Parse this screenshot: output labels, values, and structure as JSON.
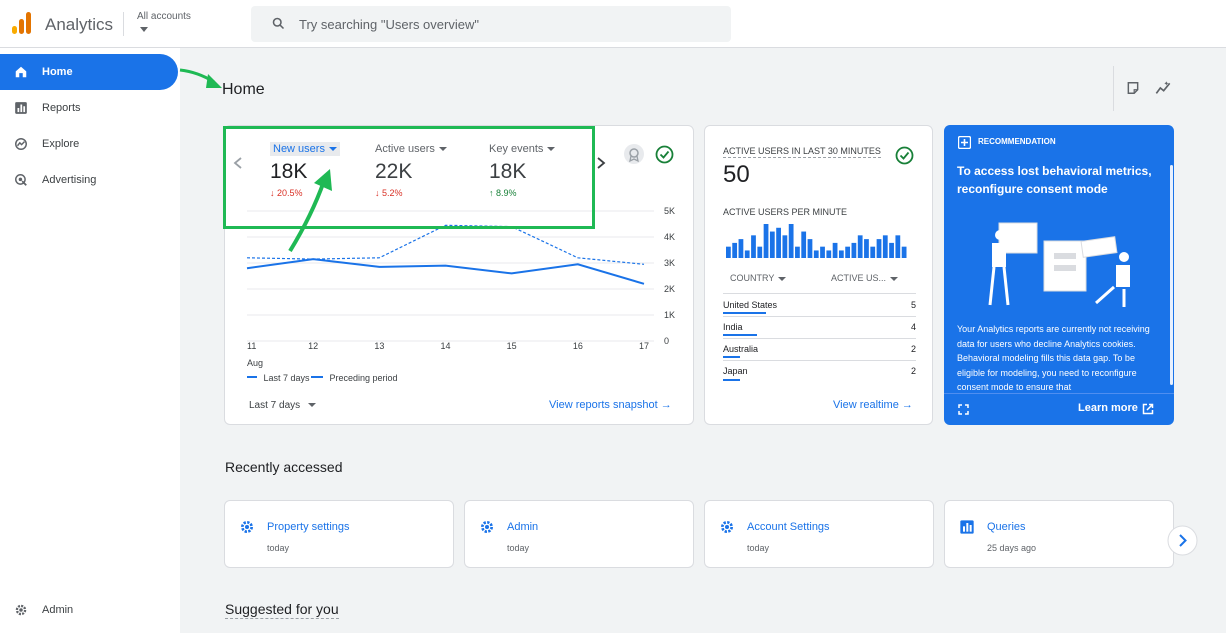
{
  "app": {
    "title": "Analytics",
    "account_label": "All accounts"
  },
  "search": {
    "placeholder": "Try searching \"Users overview\""
  },
  "sidebar": {
    "items": [
      {
        "label": "Home",
        "icon": "home-icon",
        "active": true
      },
      {
        "label": "Reports",
        "icon": "bar-chart-icon"
      },
      {
        "label": "Explore",
        "icon": "explore-icon"
      },
      {
        "label": "Advertising",
        "icon": "advertising-icon"
      }
    ],
    "admin_label": "Admin"
  },
  "page": {
    "title": "Home"
  },
  "overview": {
    "metrics": [
      {
        "name": "New users",
        "value": "18K",
        "delta": "20.5%",
        "direction": "down"
      },
      {
        "name": "Active users",
        "value": "22K",
        "delta": "5.2%",
        "direction": "down"
      },
      {
        "name": "Key events",
        "value": "18K",
        "delta": "8.9%",
        "direction": "up"
      }
    ],
    "legend": {
      "current": "Last 7 days",
      "previous": "Preceding period"
    },
    "date_range": "Last 7 days",
    "link": "View reports snapshot"
  },
  "chart_data": {
    "type": "line",
    "x": [
      "11",
      "12",
      "13",
      "14",
      "15",
      "16",
      "17"
    ],
    "x_sublabel": "Aug",
    "y_ticks": [
      "5K",
      "4K",
      "3K",
      "2K",
      "1K",
      "0"
    ],
    "ylim": [
      0,
      5000
    ],
    "series": [
      {
        "name": "Last 7 days",
        "values": [
          2800,
          3150,
          2850,
          2900,
          2600,
          2950,
          2200
        ]
      },
      {
        "name": "Preceding period",
        "values": [
          3200,
          3150,
          3200,
          4450,
          4400,
          3200,
          2950
        ]
      }
    ]
  },
  "realtime": {
    "title": "ACTIVE USERS IN LAST 30 MINUTES",
    "value": "50",
    "per_minute_label": "ACTIVE USERS PER MINUTE",
    "per_minute": [
      3,
      4,
      5,
      2,
      6,
      3,
      9,
      7,
      8,
      6,
      9,
      3,
      7,
      5,
      2,
      3,
      2,
      4,
      2,
      3,
      4,
      6,
      5,
      3,
      5,
      6,
      4,
      6,
      3
    ],
    "columns": [
      "COUNTRY",
      "ACTIVE US..."
    ],
    "rows": [
      {
        "country": "United States",
        "value": "5",
        "share": 0.98
      },
      {
        "country": "India",
        "value": "4",
        "share": 0.78
      },
      {
        "country": "Australia",
        "value": "2",
        "share": 0.39
      },
      {
        "country": "Japan",
        "value": "2",
        "share": 0.39
      }
    ],
    "link": "View realtime"
  },
  "recommendation": {
    "label": "RECOMMENDATION",
    "title": "To access lost behavioral metrics, reconfigure consent mode",
    "body": "Your Analytics reports are currently not receiving data for users who decline Analytics cookies. Behavioral modeling fills this data gap. To be eligible for modeling, you need to reconfigure consent mode to ensure that",
    "link": "Learn more"
  },
  "recent": {
    "title": "Recently accessed",
    "items": [
      {
        "title": "Property settings",
        "sub": "today",
        "icon": "gear-icon"
      },
      {
        "title": "Admin",
        "sub": "today",
        "icon": "gear-icon"
      },
      {
        "title": "Account Settings",
        "sub": "today",
        "icon": "gear-icon"
      },
      {
        "title": "Queries",
        "sub": "25 days ago",
        "icon": "report-icon"
      }
    ]
  },
  "suggested": {
    "title": "Suggested for you"
  },
  "colors": {
    "accent": "#1a73e8",
    "annotation": "#1fb954",
    "negative": "#d93025",
    "positive": "#188038"
  }
}
